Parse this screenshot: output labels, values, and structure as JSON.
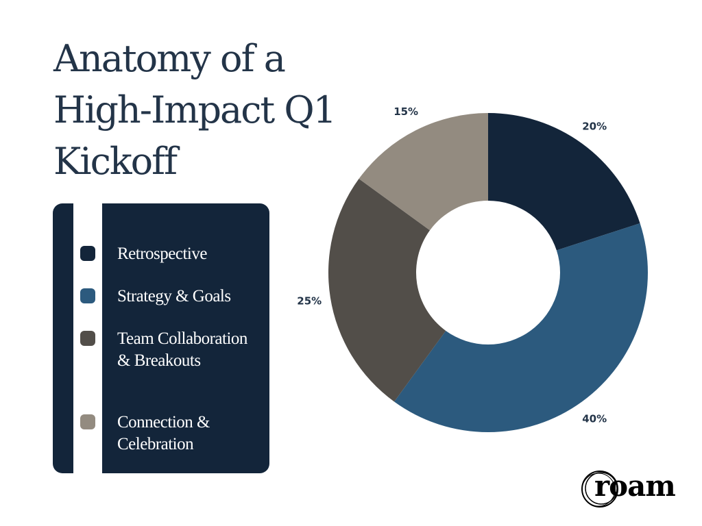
{
  "title_lines": [
    "Anatomy of a",
    "High-Impact Q1",
    "Kickoff"
  ],
  "chart_data": {
    "type": "pie",
    "variant": "donut",
    "title": "Anatomy of a High-Impact Q1 Kickoff",
    "categories": [
      "Retrospective",
      "Strategy & Goals",
      "Team Collaboration & Breakouts",
      "Connection & Celebration"
    ],
    "values": [
      20,
      40,
      25,
      15
    ],
    "labels": [
      "20%",
      "40%",
      "25%",
      "15%"
    ],
    "colors": [
      "#13253a",
      "#2c5a7e",
      "#524e49",
      "#938b80"
    ],
    "start": "top",
    "direction": "clockwise",
    "legend_placement": "left"
  },
  "logo_text": "roam"
}
